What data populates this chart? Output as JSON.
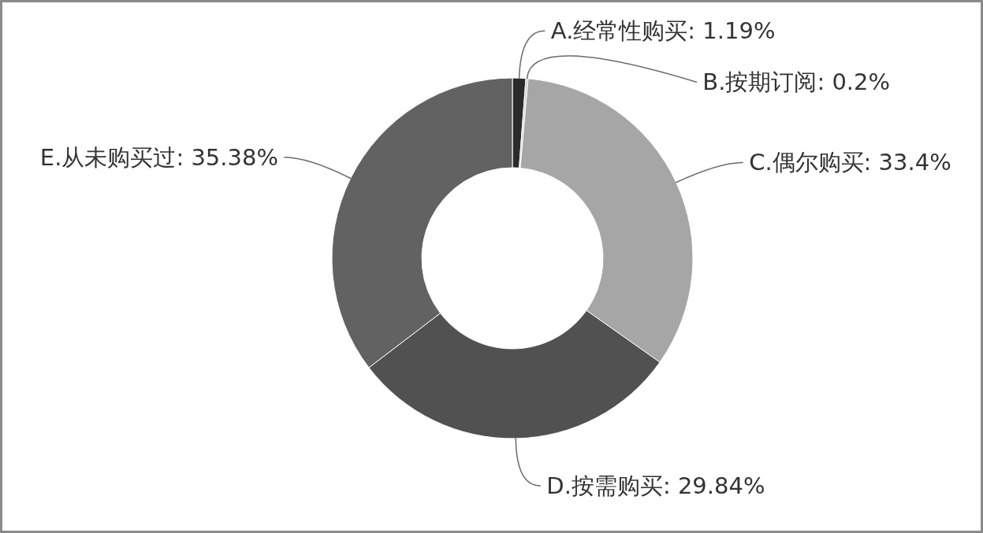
{
  "chart_data": {
    "type": "donut",
    "categories": [
      "A.经常性购买",
      "B.按期订阅",
      "C.偶尔购买",
      "D.按需购买",
      "E.从未购买过"
    ],
    "values": [
      1.19,
      0.2,
      33.4,
      29.84,
      35.38
    ],
    "value_labels": [
      "1.19%",
      "0.2%",
      "33.4%",
      "29.84%",
      "35.38%"
    ],
    "colors": [
      "#2b2b2b",
      "#cfcfcf",
      "#a6a6a6",
      "#515151",
      "#626262"
    ]
  }
}
